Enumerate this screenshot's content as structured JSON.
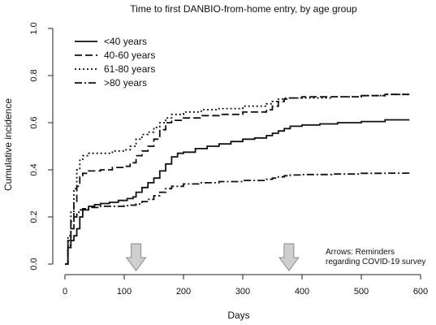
{
  "chart_data": {
    "type": "line",
    "title": "Time to first DANBIO-from-home entry, by age group",
    "xlabel": "Days",
    "ylabel": "Cumulative incidence",
    "xlim": [
      0,
      600
    ],
    "ylim": [
      0,
      1
    ],
    "x_ticks": [
      "0",
      "100",
      "200",
      "300",
      "400",
      "500",
      "600"
    ],
    "y_ticks": [
      "0.0",
      "0.2",
      "0.4",
      "0.6",
      "0.8",
      "1.0"
    ],
    "grid": false,
    "legend_position": "top-left",
    "series": [
      {
        "name": "<40 years",
        "style": "solid",
        "x": [
          0,
          5,
          10,
          15,
          20,
          25,
          30,
          40,
          50,
          60,
          75,
          90,
          105,
          115,
          120,
          130,
          140,
          150,
          160,
          170,
          180,
          190,
          200,
          220,
          240,
          260,
          280,
          300,
          320,
          340,
          350,
          360,
          370,
          380,
          400,
          430,
          460,
          500,
          540,
          580
        ],
        "y": [
          0,
          0.07,
          0.1,
          0.12,
          0.15,
          0.2,
          0.23,
          0.245,
          0.252,
          0.257,
          0.262,
          0.27,
          0.278,
          0.285,
          0.305,
          0.325,
          0.345,
          0.365,
          0.395,
          0.425,
          0.455,
          0.47,
          0.475,
          0.49,
          0.5,
          0.51,
          0.52,
          0.53,
          0.535,
          0.545,
          0.555,
          0.565,
          0.575,
          0.585,
          0.59,
          0.595,
          0.6,
          0.605,
          0.612,
          0.615
        ]
      },
      {
        "name": "40-60 years",
        "style": "dashed",
        "x": [
          0,
          5,
          10,
          15,
          20,
          25,
          30,
          40,
          60,
          80,
          100,
          110,
          120,
          130,
          140,
          150,
          160,
          170,
          180,
          200,
          230,
          260,
          300,
          340,
          350,
          360,
          370,
          380,
          400,
          450,
          500,
          540,
          580
        ],
        "y": [
          0,
          0.1,
          0.18,
          0.26,
          0.33,
          0.37,
          0.385,
          0.395,
          0.4,
          0.41,
          0.415,
          0.43,
          0.46,
          0.48,
          0.5,
          0.53,
          0.57,
          0.6,
          0.61,
          0.62,
          0.63,
          0.635,
          0.645,
          0.655,
          0.67,
          0.69,
          0.7,
          0.705,
          0.71,
          0.71,
          0.715,
          0.72,
          0.725
        ]
      },
      {
        "name": "61-80 years",
        "style": "dotted",
        "x": [
          0,
          5,
          10,
          15,
          20,
          25,
          30,
          40,
          60,
          80,
          100,
          110,
          120,
          130,
          140,
          150,
          160,
          170,
          180,
          200,
          230,
          260,
          300,
          340,
          350,
          360,
          370,
          380,
          400,
          450,
          500,
          540,
          580
        ],
        "y": [
          0,
          0.12,
          0.22,
          0.32,
          0.4,
          0.44,
          0.46,
          0.47,
          0.47,
          0.48,
          0.485,
          0.5,
          0.53,
          0.55,
          0.56,
          0.58,
          0.6,
          0.62,
          0.635,
          0.645,
          0.655,
          0.66,
          0.67,
          0.68,
          0.69,
          0.7,
          0.705,
          0.705,
          0.705,
          0.71,
          0.715,
          0.72,
          0.73
        ]
      },
      {
        "name": ">80 years",
        "style": "dashdot",
        "x": [
          0,
          5,
          10,
          15,
          20,
          25,
          30,
          40,
          60,
          80,
          100,
          110,
          120,
          130,
          140,
          150,
          160,
          170,
          180,
          200,
          230,
          260,
          300,
          340,
          350,
          360,
          370,
          380,
          400,
          450,
          500,
          540,
          580
        ],
        "y": [
          0,
          0.08,
          0.15,
          0.2,
          0.22,
          0.23,
          0.235,
          0.24,
          0.245,
          0.245,
          0.248,
          0.25,
          0.255,
          0.265,
          0.275,
          0.29,
          0.305,
          0.32,
          0.33,
          0.34,
          0.345,
          0.35,
          0.355,
          0.36,
          0.365,
          0.37,
          0.375,
          0.378,
          0.38,
          0.382,
          0.385,
          0.386,
          0.388
        ]
      }
    ],
    "annotations": [
      {
        "text": "Arrows: Reminders",
        "kind": "note"
      },
      {
        "text": "regarding COVID-19 survey",
        "kind": "note"
      }
    ],
    "arrows_at_x": [
      120,
      378
    ],
    "colors": {
      "line": "#111111",
      "arrow_fill": "#cfcfcf",
      "arrow_stroke": "#8a8a8a"
    }
  }
}
